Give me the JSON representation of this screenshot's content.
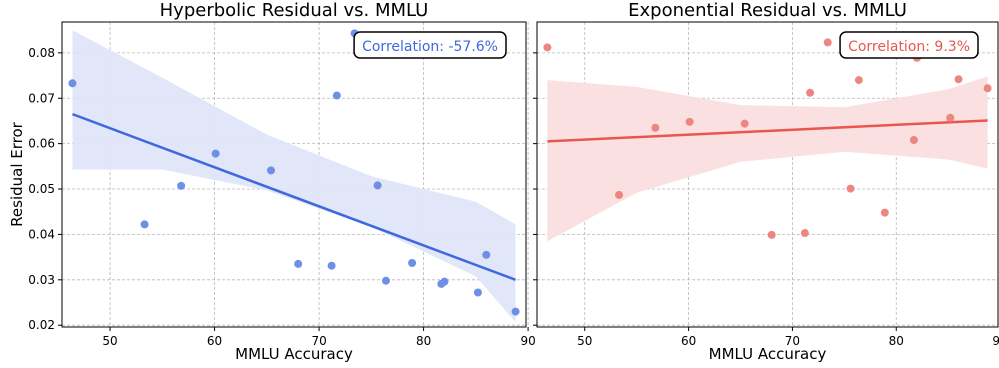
{
  "chart_data": [
    {
      "type": "scatter",
      "title": "Hyperbolic Residual vs. MMLU",
      "xlabel": "MMLU Accuracy",
      "ylabel": "Residual Error",
      "xlim": [
        45.4,
        89.8
      ],
      "ylim": [
        0.0196,
        0.0868
      ],
      "xticks": [
        50,
        60,
        70,
        80,
        90
      ],
      "yticks": [
        0.02,
        0.03,
        0.04,
        0.05,
        0.06,
        0.07,
        0.08
      ],
      "ytick_labels": [
        "0.02",
        "0.03",
        "0.04",
        "0.05",
        "0.06",
        "0.07",
        "0.08"
      ],
      "grid": true,
      "point_color": "#6f8fe6",
      "line_color": "#3f68e0",
      "band_color": "#dfe5f8",
      "annotation": {
        "text": "Correlation: -57.6%",
        "color": "#3f68e0",
        "placement": "top-right"
      },
      "points": {
        "x": [
          46.4,
          53.3,
          56.8,
          60.1,
          65.4,
          68.0,
          71.2,
          71.7,
          73.4,
          75.6,
          76.4,
          78.9,
          81.7,
          82.0,
          85.2,
          86.0,
          88.8
        ],
        "y": [
          0.0733,
          0.0422,
          0.0507,
          0.0578,
          0.0541,
          0.0335,
          0.0331,
          0.0706,
          0.0843,
          0.0508,
          0.0298,
          0.0337,
          0.0291,
          0.0296,
          0.0272,
          0.0355,
          0.023
        ]
      },
      "fit_line": {
        "x": [
          46.4,
          88.8
        ],
        "y": [
          0.0665,
          0.03
        ]
      },
      "confidence_band": {
        "x": [
          46.4,
          55,
          65,
          75,
          85,
          88.8
        ],
        "lower": [
          0.0543,
          0.0543,
          0.0497,
          0.0417,
          0.0308,
          0.0207
        ],
        "upper": [
          0.085,
          0.0745,
          0.062,
          0.0528,
          0.0472,
          0.0422
        ]
      }
    },
    {
      "type": "scatter",
      "title": "Exponential Residual vs. MMLU",
      "xlabel": "MMLU Accuracy",
      "ylabel": "",
      "xlim": [
        45.4,
        89.8
      ],
      "ylim": [
        0.0196,
        0.0868
      ],
      "xticks": [
        50,
        60,
        70,
        80,
        90
      ],
      "yticks": [
        0.02,
        0.03,
        0.04,
        0.05,
        0.06,
        0.07,
        0.08
      ],
      "grid": true,
      "point_color": "#ee8680",
      "line_color": "#e8574f",
      "band_color": "#fadede",
      "annotation": {
        "text": "Correlation: 9.3%",
        "color": "#e8574f",
        "placement": "top-right"
      },
      "points": {
        "x": [
          46.4,
          53.3,
          56.8,
          60.1,
          65.4,
          68.0,
          71.2,
          71.7,
          73.4,
          75.6,
          76.4,
          78.9,
          81.7,
          82.0,
          85.2,
          86.0,
          88.8
        ],
        "y": [
          0.0812,
          0.0487,
          0.0635,
          0.0648,
          0.0644,
          0.0399,
          0.0403,
          0.0712,
          0.0823,
          0.0501,
          0.074,
          0.0448,
          0.0608,
          0.0789,
          0.0657,
          0.0742,
          0.0722
        ]
      },
      "fit_line": {
        "x": [
          46.4,
          88.8
        ],
        "y": [
          0.0605,
          0.0651
        ]
      },
      "confidence_band": {
        "x": [
          46.4,
          55,
          65,
          75,
          85,
          88.8
        ],
        "lower": [
          0.0385,
          0.0492,
          0.056,
          0.0582,
          0.0565,
          0.0545
        ],
        "upper": [
          0.074,
          0.0725,
          0.0685,
          0.068,
          0.072,
          0.0748
        ]
      }
    }
  ]
}
